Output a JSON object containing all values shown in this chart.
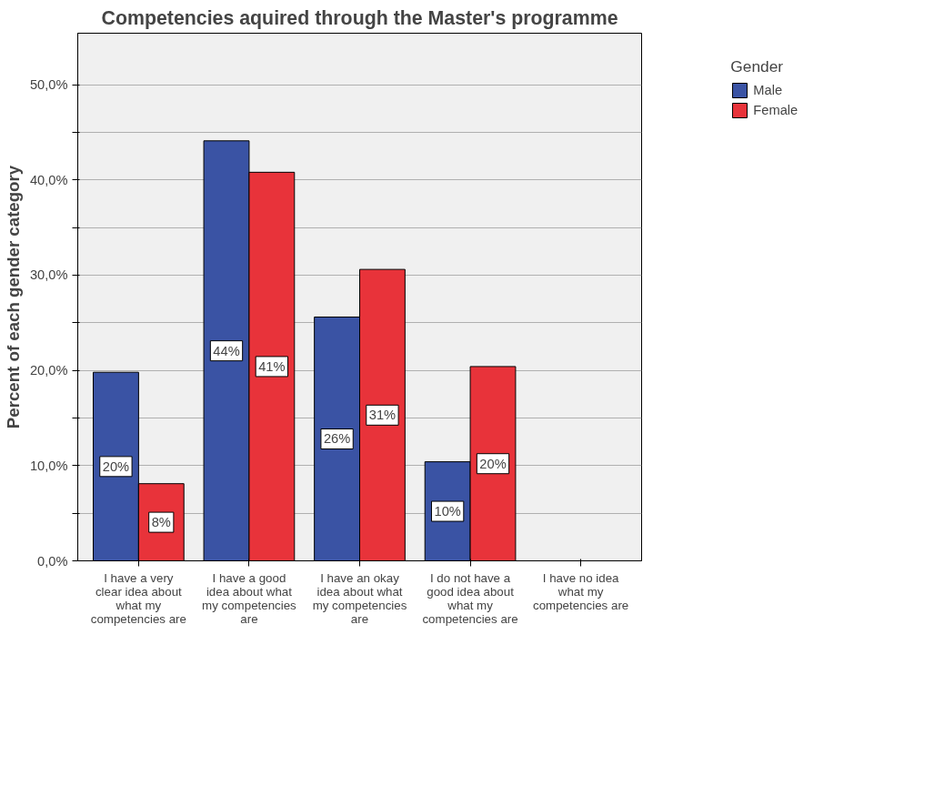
{
  "chart_data": {
    "type": "bar",
    "title": "Competencies aquired through the Master's programme",
    "ylabel": "Percent of each gender category",
    "legend_title": "Gender",
    "legend": "top right",
    "categories": [
      "I have a very clear idea about what my competencies are",
      "I have a good idea about what my competencies are",
      "I have an okay idea about what my competencies are",
      "I do not have a good idea about what my competencies are",
      "I have no idea what my competencies are"
    ],
    "series": [
      {
        "name": "Male",
        "color": "#3a53a4",
        "values": [
          19.8,
          44.1,
          25.6,
          10.4,
          null
        ],
        "value_labels": [
          "20%",
          "44%",
          "26%",
          "10%",
          null
        ]
      },
      {
        "name": "Female",
        "color": "#e8333a",
        "values": [
          8.1,
          40.8,
          30.6,
          20.4,
          null
        ],
        "value_labels": [
          "8%",
          "41%",
          "31%",
          "20%",
          null
        ]
      }
    ],
    "ylim": [
      0,
      55.4
    ],
    "yticks": [
      {
        "value": 0,
        "label": "0,0%"
      },
      {
        "value": 5,
        "label": null
      },
      {
        "value": 10,
        "label": "10,0%"
      },
      {
        "value": 15,
        "label": null
      },
      {
        "value": 20,
        "label": "20,0%"
      },
      {
        "value": 25,
        "label": null
      },
      {
        "value": 30,
        "label": "30,0%"
      },
      {
        "value": 35,
        "label": null
      },
      {
        "value": 40,
        "label": "40,0%"
      },
      {
        "value": 45,
        "label": null
      },
      {
        "value": 50,
        "label": "50,0%"
      }
    ],
    "grid": "y"
  }
}
